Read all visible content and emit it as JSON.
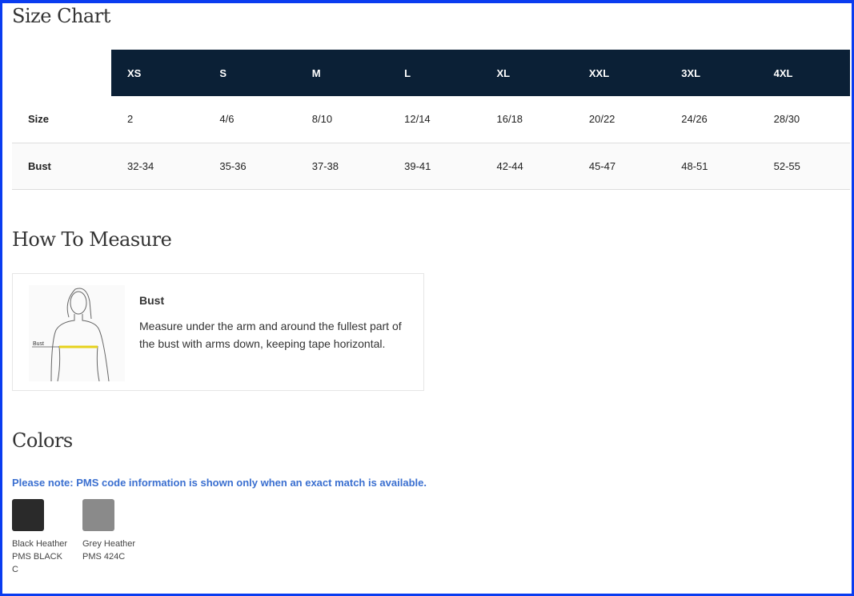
{
  "size_chart": {
    "title": "Size Chart",
    "columns": [
      "XS",
      "S",
      "M",
      "L",
      "XL",
      "XXL",
      "3XL",
      "4XL"
    ],
    "rows": [
      {
        "label": "Size",
        "values": [
          "2",
          "4/6",
          "8/10",
          "12/14",
          "16/18",
          "20/22",
          "24/26",
          "28/30"
        ]
      },
      {
        "label": "Bust",
        "values": [
          "32-34",
          "35-36",
          "37-38",
          "39-41",
          "42-44",
          "45-47",
          "48-51",
          "52-55"
        ]
      }
    ]
  },
  "how_to_measure": {
    "title": "How To Measure",
    "figure_label": "Bust",
    "heading": "Bust",
    "text": "Measure under the arm and around the fullest part of the bust with arms down, keeping tape horizontal."
  },
  "colors": {
    "title": "Colors",
    "note": "Please note: PMS code information is shown only when an exact match is available.",
    "swatches": [
      {
        "name": "Black Heather",
        "pms": "PMS BLACK C",
        "hex": "#2a2a2a"
      },
      {
        "name": "Grey Heather",
        "pms": "PMS 424C",
        "hex": "#8a8a8a"
      }
    ]
  }
}
